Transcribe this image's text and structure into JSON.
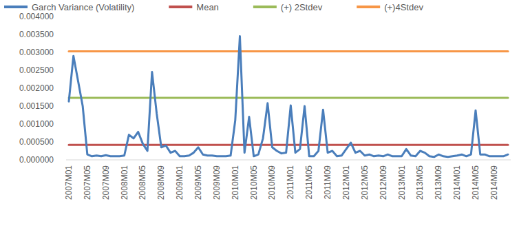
{
  "chart_data": {
    "type": "line",
    "legend": "top",
    "grid": false,
    "categories": [
      "2007M01",
      null,
      null,
      null,
      "2007M05",
      null,
      null,
      null,
      "2007M09",
      null,
      null,
      null,
      "2008M01",
      null,
      null,
      null,
      "2008M05",
      null,
      null,
      null,
      "2008M09",
      null,
      null,
      null,
      "2009M01",
      null,
      null,
      null,
      "2009M05",
      null,
      null,
      null,
      "2009M09",
      null,
      null,
      null,
      "2010M01",
      null,
      null,
      null,
      "2010M05",
      null,
      null,
      null,
      "2010M09",
      null,
      null,
      null,
      "2011M01",
      null,
      null,
      null,
      "2011M05",
      null,
      null,
      null,
      "2011M09",
      null,
      null,
      null,
      "2012M01",
      null,
      null,
      null,
      "2012M05",
      null,
      null,
      null,
      "2012M09",
      null,
      null,
      null,
      "2013M01",
      null,
      null,
      null,
      "2013M05",
      null,
      null,
      null,
      "2013M09",
      null,
      null,
      null,
      "2014M01",
      null,
      null,
      null,
      "2014M05",
      null,
      null,
      null,
      "2014M09",
      null,
      null,
      null
    ],
    "ylim": [
      0,
      0.004
    ],
    "yticks": [
      {
        "value": 0,
        "label": "0.000000"
      },
      {
        "value": 0.0005,
        "label": "0.000500"
      },
      {
        "value": 0.001,
        "label": "0.001000"
      },
      {
        "value": 0.0015,
        "label": "0.001500"
      },
      {
        "value": 0.002,
        "label": "0.002000"
      },
      {
        "value": 0.0025,
        "label": "0.002500"
      },
      {
        "value": 0.003,
        "label": "0.003000"
      },
      {
        "value": 0.0035,
        "label": "0.003500"
      },
      {
        "value": 0.004,
        "label": "0.004000"
      }
    ],
    "series": [
      {
        "name": "Garch Variance (Volatility)",
        "color": "#4a7ebb",
        "values": [
          0.00163,
          0.0029,
          0.0022,
          0.0015,
          0.00015,
          0.0001,
          0.00012,
          0.0001,
          0.00013,
          0.0001,
          0.0001,
          0.0001,
          0.00012,
          0.0007,
          0.0006,
          0.00078,
          0.00045,
          0.00025,
          0.00245,
          0.0013,
          0.00035,
          0.0004,
          0.0002,
          0.00025,
          0.0001,
          0.0001,
          0.00012,
          0.0002,
          0.00035,
          0.00015,
          0.00012,
          0.00012,
          0.0001,
          0.0001,
          0.0001,
          0.00012,
          0.0011,
          0.00345,
          0.0002,
          0.0012,
          0.0001,
          0.00015,
          0.0006,
          0.00158,
          0.00035,
          0.00025,
          0.00018,
          0.0002,
          0.00152,
          0.0002,
          0.0003,
          0.0015,
          0.0001,
          0.0001,
          0.00025,
          0.0014,
          0.0002,
          0.00025,
          0.0001,
          0.00012,
          0.0003,
          0.00048,
          0.0002,
          0.00025,
          0.00012,
          0.00015,
          0.0001,
          0.00012,
          0.0001,
          0.00015,
          0.0001,
          0.0001,
          0.0001,
          0.0003,
          0.00012,
          0.0001,
          0.00025,
          0.0002,
          0.0001,
          8e-05,
          0.00015,
          0.0001,
          8e-05,
          0.0001,
          0.00012,
          0.00015,
          0.0001,
          0.00015,
          0.00138,
          0.00015,
          0.00015,
          0.0001,
          0.0001,
          0.0001,
          0.0001,
          0.00015
        ]
      },
      {
        "name": "Mean",
        "color": "#c0504d",
        "values": [
          0.00042,
          0.00042,
          0.00042,
          0.00042,
          0.00042,
          0.00042,
          0.00042,
          0.00042,
          0.00042,
          0.00042,
          0.00042,
          0.00042,
          0.00042,
          0.00042,
          0.00042,
          0.00042,
          0.00042,
          0.00042,
          0.00042,
          0.00042,
          0.00042,
          0.00042,
          0.00042,
          0.00042,
          0.00042,
          0.00042,
          0.00042,
          0.00042,
          0.00042,
          0.00042,
          0.00042,
          0.00042,
          0.00042,
          0.00042,
          0.00042,
          0.00042,
          0.00042,
          0.00042,
          0.00042,
          0.00042,
          0.00042,
          0.00042,
          0.00042,
          0.00042,
          0.00042,
          0.00042,
          0.00042,
          0.00042,
          0.00042,
          0.00042,
          0.00042,
          0.00042,
          0.00042,
          0.00042,
          0.00042,
          0.00042,
          0.00042,
          0.00042,
          0.00042,
          0.00042,
          0.00042,
          0.00042,
          0.00042,
          0.00042,
          0.00042,
          0.00042,
          0.00042,
          0.00042,
          0.00042,
          0.00042,
          0.00042,
          0.00042,
          0.00042,
          0.00042,
          0.00042,
          0.00042,
          0.00042,
          0.00042,
          0.00042,
          0.00042,
          0.00042,
          0.00042,
          0.00042,
          0.00042,
          0.00042,
          0.00042,
          0.00042,
          0.00042,
          0.00042,
          0.00042,
          0.00042,
          0.00042,
          0.00042,
          0.00042,
          0.00042,
          0.00042
        ]
      },
      {
        "name": "(+) 2Stdev",
        "color": "#9bbb59",
        "values": [
          0.00173,
          0.00173,
          0.00173,
          0.00173,
          0.00173,
          0.00173,
          0.00173,
          0.00173,
          0.00173,
          0.00173,
          0.00173,
          0.00173,
          0.00173,
          0.00173,
          0.00173,
          0.00173,
          0.00173,
          0.00173,
          0.00173,
          0.00173,
          0.00173,
          0.00173,
          0.00173,
          0.00173,
          0.00173,
          0.00173,
          0.00173,
          0.00173,
          0.00173,
          0.00173,
          0.00173,
          0.00173,
          0.00173,
          0.00173,
          0.00173,
          0.00173,
          0.00173,
          0.00173,
          0.00173,
          0.00173,
          0.00173,
          0.00173,
          0.00173,
          0.00173,
          0.00173,
          0.00173,
          0.00173,
          0.00173,
          0.00173,
          0.00173,
          0.00173,
          0.00173,
          0.00173,
          0.00173,
          0.00173,
          0.00173,
          0.00173,
          0.00173,
          0.00173,
          0.00173,
          0.00173,
          0.00173,
          0.00173,
          0.00173,
          0.00173,
          0.00173,
          0.00173,
          0.00173,
          0.00173,
          0.00173,
          0.00173,
          0.00173,
          0.00173,
          0.00173,
          0.00173,
          0.00173,
          0.00173,
          0.00173,
          0.00173,
          0.00173,
          0.00173,
          0.00173,
          0.00173,
          0.00173,
          0.00173,
          0.00173,
          0.00173,
          0.00173,
          0.00173,
          0.00173,
          0.00173,
          0.00173,
          0.00173,
          0.00173,
          0.00173,
          0.00173
        ]
      },
      {
        "name": "(+)4Stdev",
        "color": "#f79646",
        "values": [
          0.00303,
          0.00303,
          0.00303,
          0.00303,
          0.00303,
          0.00303,
          0.00303,
          0.00303,
          0.00303,
          0.00303,
          0.00303,
          0.00303,
          0.00303,
          0.00303,
          0.00303,
          0.00303,
          0.00303,
          0.00303,
          0.00303,
          0.00303,
          0.00303,
          0.00303,
          0.00303,
          0.00303,
          0.00303,
          0.00303,
          0.00303,
          0.00303,
          0.00303,
          0.00303,
          0.00303,
          0.00303,
          0.00303,
          0.00303,
          0.00303,
          0.00303,
          0.00303,
          0.00303,
          0.00303,
          0.00303,
          0.00303,
          0.00303,
          0.00303,
          0.00303,
          0.00303,
          0.00303,
          0.00303,
          0.00303,
          0.00303,
          0.00303,
          0.00303,
          0.00303,
          0.00303,
          0.00303,
          0.00303,
          0.00303,
          0.00303,
          0.00303,
          0.00303,
          0.00303,
          0.00303,
          0.00303,
          0.00303,
          0.00303,
          0.00303,
          0.00303,
          0.00303,
          0.00303,
          0.00303,
          0.00303,
          0.00303,
          0.00303,
          0.00303,
          0.00303,
          0.00303,
          0.00303,
          0.00303,
          0.00303,
          0.00303,
          0.00303,
          0.00303,
          0.00303,
          0.00303,
          0.00303,
          0.00303,
          0.00303,
          0.00303,
          0.00303,
          0.00303,
          0.00303,
          0.00303,
          0.00303,
          0.00303,
          0.00303,
          0.00303,
          0.00303
        ]
      }
    ]
  }
}
